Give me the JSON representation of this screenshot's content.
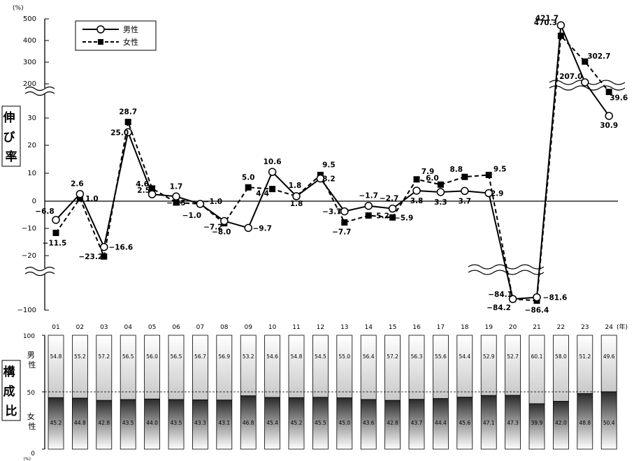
{
  "chart_data": [
    {
      "type": "line",
      "ylabel": "伸び率",
      "yunit": "(%)",
      "yticks_upper": [
        "500",
        "400",
        "300",
        "200"
      ],
      "yticks_lower": [
        "30",
        "20",
        "10",
        "0",
        "−10",
        "−20",
        "−100"
      ],
      "x": [
        "01",
        "02",
        "03",
        "04",
        "05",
        "06",
        "07",
        "08",
        "09",
        "10",
        "11",
        "12",
        "13",
        "14",
        "15",
        "16",
        "17",
        "18",
        "19",
        "20",
        "21",
        "22",
        "23",
        "24"
      ],
      "series": [
        {
          "name": "男性",
          "style": "solid",
          "marker": "circle",
          "values": [
            -6.8,
            2.6,
            -16.6,
            25.0,
            2.5,
            1.7,
            -1.0,
            -7.2,
            -9.7,
            10.6,
            1.8,
            8.2,
            -3.7,
            -1.7,
            -2.7,
            3.8,
            3.3,
            3.7,
            2.9,
            -84.1,
            -81.6,
            470.3,
            207.0,
            30.9
          ],
          "labels": [
            "−6.8",
            "2.6",
            "−16.6",
            "25.0",
            "2.5",
            "1.7",
            "−1.0",
            "−7.2",
            "−9.7",
            "10.6",
            "1.8",
            "8.2",
            "−3.7",
            "−1.7",
            "−2.7",
            "3.8",
            "3.3",
            "3.7",
            "2.9",
            "−84.1",
            "−81.6",
            "470.3",
            "207.0",
            "30.9"
          ]
        },
        {
          "name": "女性",
          "style": "dashed",
          "marker": "square",
          "values": [
            -11.5,
            1.0,
            -23.2,
            28.7,
            4.6,
            -0.5,
            -1.0,
            -8.0,
            5.0,
            4.4,
            1.8,
            9.5,
            -7.7,
            -5.2,
            -5.9,
            7.9,
            6.0,
            8.8,
            9.5,
            -84.2,
            -86.4,
            421.7,
            302.7,
            39.6
          ],
          "labels": [
            "−11.5",
            "1.0",
            "−23.2",
            "28.7",
            "4.6",
            "−0.5",
            "−1.0",
            "−8.0",
            "5.0",
            "4.4",
            "1.8",
            "9.5",
            "−7.7",
            "−5.2",
            "−5.9",
            "7.9",
            "6.0",
            "8.8",
            "9.5",
            "−84.2",
            "−86.4",
            "421.7",
            "302.7",
            "39.6"
          ]
        }
      ],
      "scale_breaks": [
        "200–30",
        "−20–−100"
      ],
      "legend": "top-left"
    },
    {
      "type": "bar",
      "stacked": true,
      "ylabel": "構成比",
      "yunit": "(%)",
      "yticks": [
        "100",
        "50",
        "0"
      ],
      "xunit": "(年)",
      "categories": [
        "01",
        "02",
        "03",
        "04",
        "05",
        "06",
        "07",
        "08",
        "09",
        "10",
        "11",
        "12",
        "13",
        "14",
        "15",
        "16",
        "17",
        "18",
        "19",
        "20",
        "21",
        "22",
        "23",
        "24"
      ],
      "series": [
        {
          "name": "男性",
          "values": [
            54.8,
            55.2,
            57.2,
            56.5,
            56.0,
            56.5,
            56.7,
            56.9,
            53.2,
            54.6,
            54.8,
            54.5,
            55.0,
            56.4,
            57.2,
            56.3,
            55.6,
            54.4,
            52.9,
            52.7,
            60.1,
            58.0,
            51.2,
            49.6
          ],
          "labels": [
            "54.8",
            "55.2",
            "57.2",
            "56.5",
            "56.0",
            "56.5",
            "56.7",
            "56.9",
            "53.2",
            "54.6",
            "54.8",
            "54.5",
            "55.0",
            "56.4",
            "57.2",
            "56.3",
            "55.6",
            "54.4",
            "52.9",
            "52.7",
            "60.1",
            "58.0",
            "51.2",
            "49.6"
          ]
        },
        {
          "name": "女性",
          "values": [
            45.2,
            44.8,
            42.8,
            43.5,
            44.0,
            43.5,
            43.3,
            43.1,
            46.8,
            45.4,
            45.2,
            45.5,
            45.0,
            43.6,
            42.8,
            43.7,
            44.4,
            45.6,
            47.1,
            47.3,
            39.9,
            42.0,
            48.8,
            50.4
          ],
          "labels": [
            "45.2",
            "44.8",
            "42.8",
            "43.5",
            "44.0",
            "43.5",
            "43.3",
            "43.1",
            "46.8",
            "45.4",
            "45.2",
            "45.5",
            "45.0",
            "43.6",
            "42.8",
            "43.7",
            "44.4",
            "45.6",
            "47.1",
            "47.3",
            "39.9",
            "42.0",
            "48.8",
            "50.4"
          ]
        }
      ],
      "ylim": [
        0,
        100
      ],
      "reference_line": 50
    }
  ]
}
